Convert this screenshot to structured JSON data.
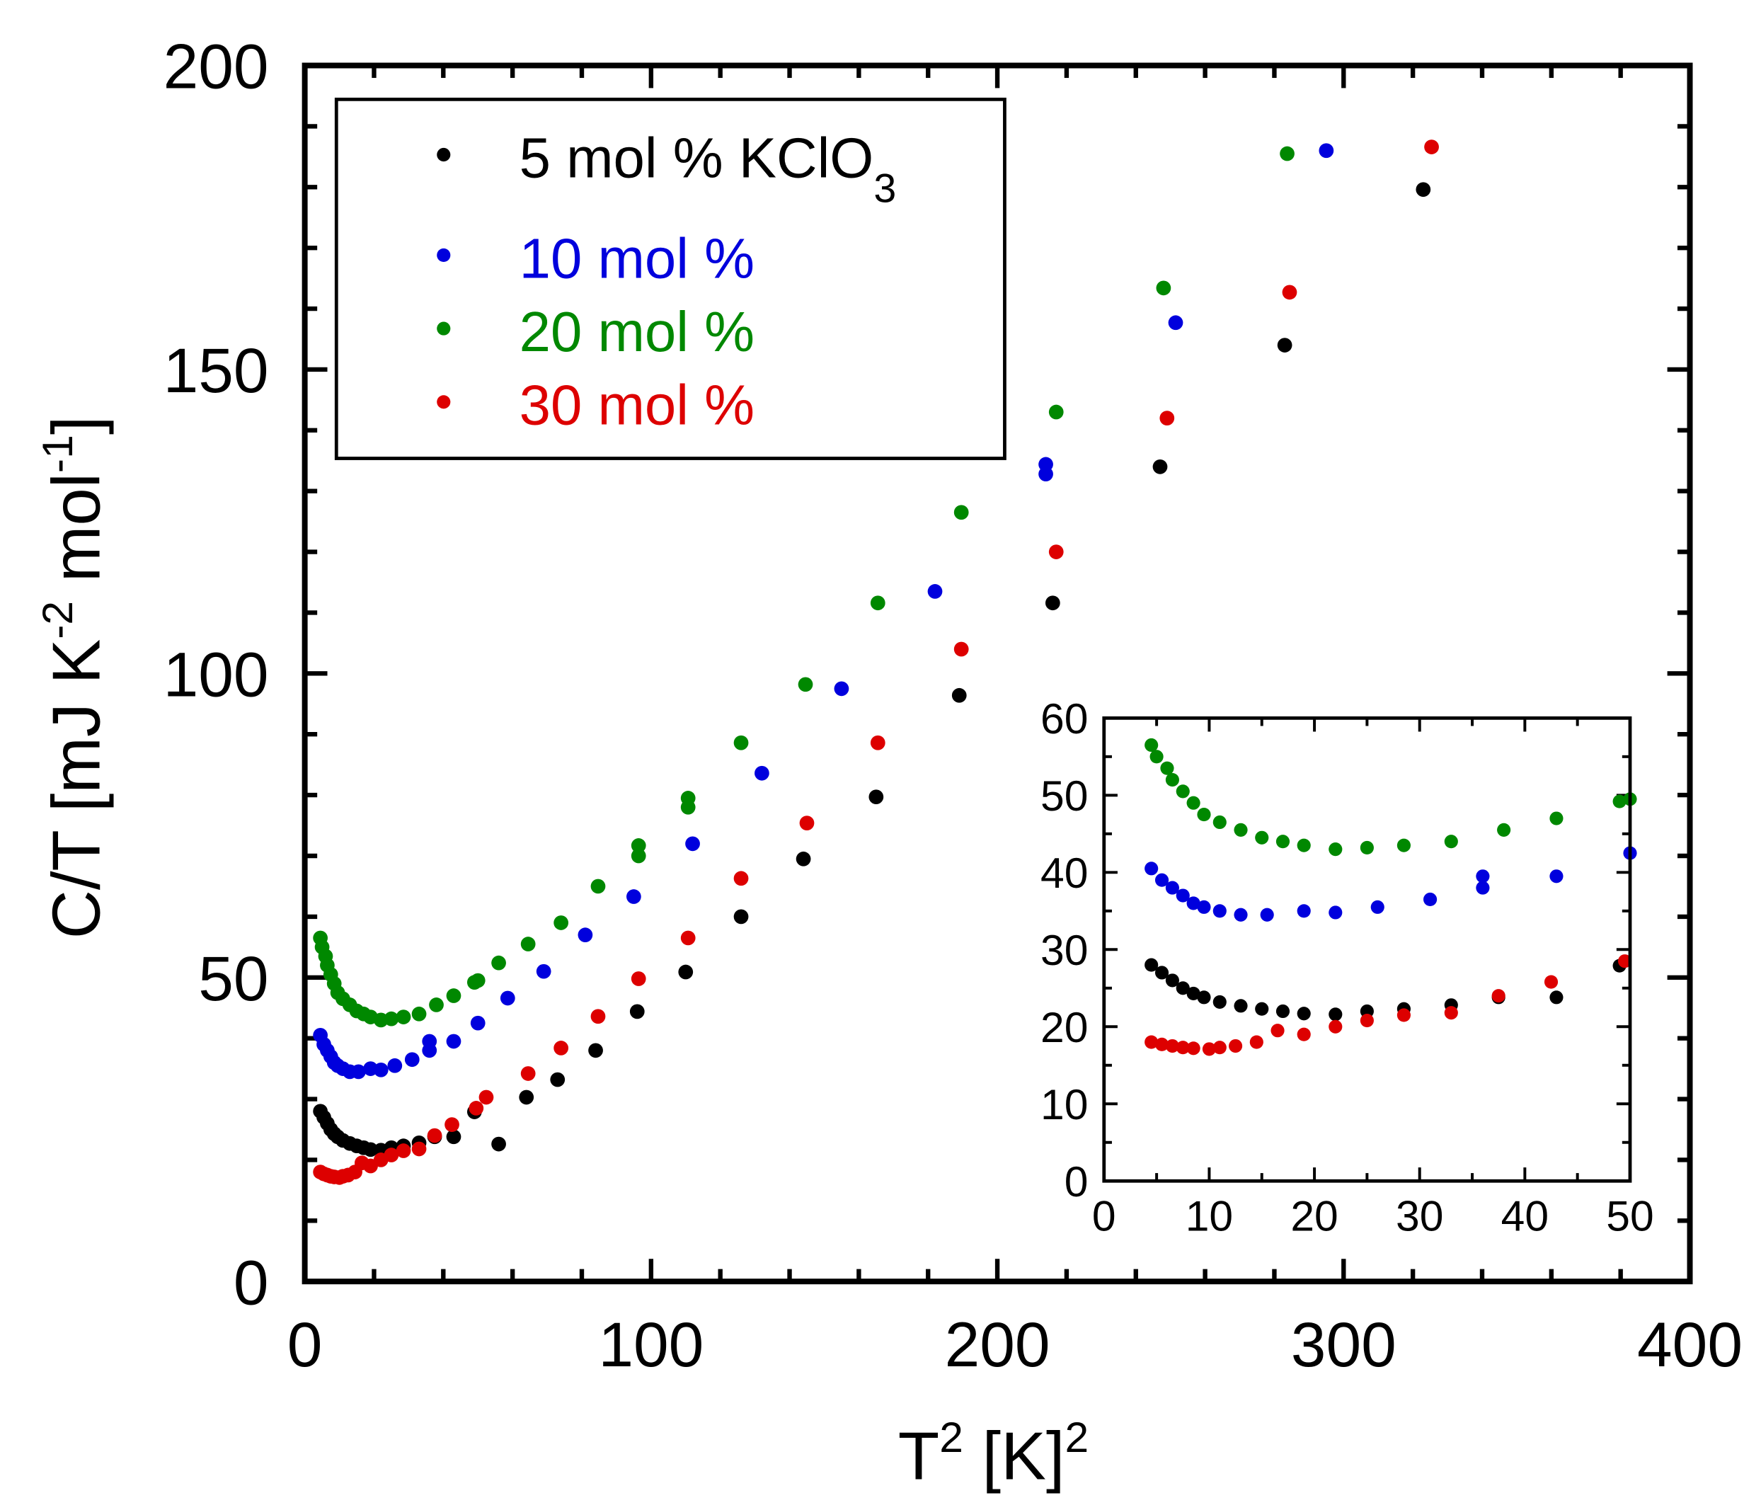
{
  "chart_data": {
    "type": "scatter",
    "xlabel": {
      "base": "T",
      "sup": "2",
      "rest": " [K]",
      "sup2": "2"
    },
    "ylabel": {
      "a": "C/T [mJ K",
      "sup1": "-2",
      "b": " mol",
      "sup2": "-1",
      "c": "]"
    },
    "xlim": [
      0,
      400
    ],
    "ylim": [
      0,
      200
    ],
    "x_ticks": [
      "0",
      "100",
      "200",
      "300",
      "400"
    ],
    "y_ticks": [
      "0",
      "50",
      "100",
      "150",
      "200"
    ],
    "legend": {
      "placement": "top-left",
      "entries": [
        {
          "label": "5 mol % KClO",
          "sub": "3",
          "color": "#000000"
        },
        {
          "label": "10 mol %",
          "color": "#0000dd"
        },
        {
          "label": "20 mol %",
          "color": "#008800"
        },
        {
          "label": "30 mol %",
          "color": "#dd0000"
        }
      ]
    },
    "inset": {
      "xlim": [
        0,
        50
      ],
      "ylim": [
        0,
        60
      ],
      "x_ticks": [
        "0",
        "10",
        "20",
        "30",
        "40",
        "50"
      ],
      "y_ticks": [
        "0",
        "10",
        "20",
        "30",
        "40",
        "50",
        "60"
      ],
      "placement": "bottom-right"
    },
    "series": [
      {
        "name": "5 mol % KClO3",
        "color": "#000000",
        "x": [
          4.5,
          5.5,
          6.5,
          7.5,
          8.5,
          9.5,
          11,
          13,
          15,
          17,
          19,
          22,
          25,
          28.5,
          33,
          37.5,
          43,
          49,
          56,
          64,
          73,
          84,
          96,
          110,
          126,
          144,
          165,
          189,
          216,
          247,
          283,
          323
        ],
        "y": [
          28,
          27,
          26,
          25,
          24.3,
          23.8,
          23.2,
          22.7,
          22.3,
          22,
          21.7,
          21.6,
          22,
          22.3,
          22.8,
          23.8,
          23.8,
          27.9,
          22.6,
          30.3,
          33.2,
          38,
          44.4,
          50.9,
          60,
          69.5,
          79.7,
          96.4,
          111.6,
          134,
          154,
          179.6
        ]
      },
      {
        "name": "10 mol %",
        "color": "#0000dd",
        "x": [
          4.5,
          5.5,
          6.5,
          7.5,
          8.5,
          9.5,
          11,
          13,
          15.5,
          19,
          22,
          26,
          31,
          36,
          36,
          43,
          50,
          58.6,
          69,
          81,
          95,
          112,
          132,
          155,
          182,
          214,
          214,
          251.5,
          295
        ],
        "y": [
          40.5,
          39,
          38,
          37,
          36,
          35.5,
          35,
          34.5,
          34.5,
          35,
          34.8,
          35.5,
          36.5,
          38,
          39.5,
          39.5,
          42.5,
          46.6,
          51,
          57,
          63.3,
          72,
          83.6,
          97.5,
          113.5,
          132.8,
          134.4,
          157.7,
          186
        ]
      },
      {
        "name": "20 mol %",
        "color": "#008800",
        "x": [
          4.5,
          5,
          6,
          6.5,
          7.5,
          8.5,
          9.5,
          11,
          13,
          15,
          17,
          19,
          22,
          25,
          28.5,
          33,
          38,
          43,
          49,
          50,
          56,
          64.5,
          74,
          84.7,
          96.4,
          96.4,
          110.7,
          110.7,
          126,
          144.6,
          165.5,
          189.6,
          217,
          248,
          283.7
        ],
        "y": [
          56.5,
          55,
          53.5,
          52,
          50.5,
          49,
          47.5,
          46.5,
          45.5,
          44.5,
          44,
          43.5,
          43,
          43.2,
          43.5,
          44,
          45.5,
          47,
          49.2,
          49.5,
          52.4,
          55.5,
          59,
          65,
          71.7,
          70,
          79.5,
          78,
          88.6,
          98.2,
          111.6,
          126.5,
          143,
          163.4,
          185.5
        ]
      },
      {
        "name": "30 mol %",
        "color": "#dd0000",
        "x": [
          4.5,
          5.5,
          6.5,
          7.5,
          8.5,
          10,
          11,
          12.5,
          14.5,
          16.5,
          19,
          22,
          25,
          28.5,
          33,
          37.5,
          42.5,
          49.5,
          52.4,
          64.5,
          74,
          84.7,
          96.4,
          110.7,
          126,
          145,
          165.5,
          189.6,
          217,
          249,
          284.4,
          325.4
        ],
        "y": [
          18,
          17.7,
          17.5,
          17.3,
          17.2,
          17.1,
          17.3,
          17.5,
          18,
          19.5,
          19,
          20,
          20.8,
          21.5,
          21.8,
          24,
          25.8,
          28.5,
          30.3,
          34.2,
          38.4,
          43.6,
          49.8,
          56.5,
          66.3,
          75.4,
          88.6,
          104,
          120,
          142,
          162.7,
          186.6
        ]
      }
    ]
  }
}
